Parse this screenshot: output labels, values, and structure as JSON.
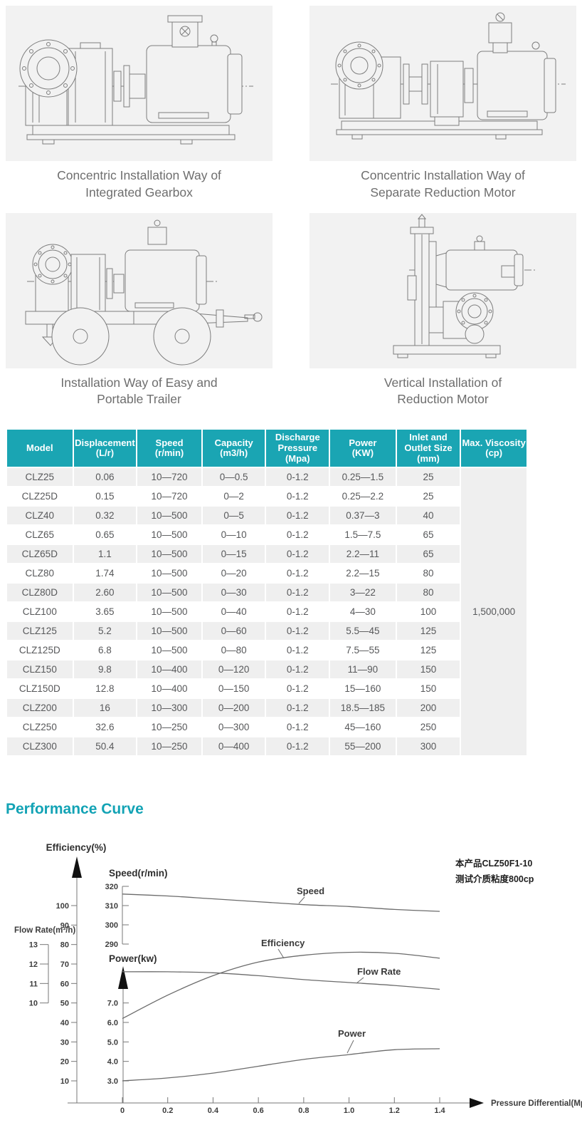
{
  "installations": {
    "items": [
      {
        "caption_line1": "Concentric Installation Way of",
        "caption_line2": "Integrated Gearbox"
      },
      {
        "caption_line1": "Concentric Installation Way of",
        "caption_line2": "Separate Reduction Motor"
      },
      {
        "caption_line1": "Installation Way of Easy and",
        "caption_line2": "Portable Trailer"
      },
      {
        "caption_line1": "Vertical Installation of",
        "caption_line2": "Reduction Motor"
      }
    ]
  },
  "spec_table": {
    "header_bg": "#1aa5b3",
    "stripe_bg": "#efefef",
    "columns": [
      {
        "lines": [
          "Model"
        ]
      },
      {
        "lines": [
          "Displacement",
          "(L/r)"
        ]
      },
      {
        "lines": [
          "Speed",
          "(r/min)"
        ]
      },
      {
        "lines": [
          "Capacity",
          "(m3/h)"
        ]
      },
      {
        "lines": [
          "Discharge",
          "Pressure",
          "(Mpa)"
        ]
      },
      {
        "lines": [
          "Power",
          "(KW)"
        ]
      },
      {
        "lines": [
          "Inlet and",
          "Outlet Size",
          "(mm)"
        ]
      },
      {
        "lines": [
          "Max. Viscosity",
          "(cp)"
        ]
      }
    ],
    "max_viscosity": "1,500,000",
    "rows": [
      {
        "model": "CLZ25",
        "displacement": "0.06",
        "speed": "10—720",
        "capacity": "0—0.5",
        "discharge_pressure": "0-1.2",
        "power": "0.25—1.5",
        "inlet_outlet_size": "25"
      },
      {
        "model": "CLZ25D",
        "displacement": "0.15",
        "speed": "10—720",
        "capacity": "0—2",
        "discharge_pressure": "0-1.2",
        "power": "0.25—2.2",
        "inlet_outlet_size": "25"
      },
      {
        "model": "CLZ40",
        "displacement": "0.32",
        "speed": "10—500",
        "capacity": "0—5",
        "discharge_pressure": "0-1.2",
        "power": "0.37—3",
        "inlet_outlet_size": "40"
      },
      {
        "model": "CLZ65",
        "displacement": "0.65",
        "speed": "10—500",
        "capacity": "0—10",
        "discharge_pressure": "0-1.2",
        "power": "1.5—7.5",
        "inlet_outlet_size": "65"
      },
      {
        "model": "CLZ65D",
        "displacement": "1.1",
        "speed": "10—500",
        "capacity": "0—15",
        "discharge_pressure": "0-1.2",
        "power": "2.2—11",
        "inlet_outlet_size": "65"
      },
      {
        "model": "CLZ80",
        "displacement": "1.74",
        "speed": "10—500",
        "capacity": "0—20",
        "discharge_pressure": "0-1.2",
        "power": "2.2—15",
        "inlet_outlet_size": "80"
      },
      {
        "model": "CLZ80D",
        "displacement": "2.60",
        "speed": "10—500",
        "capacity": "0—30",
        "discharge_pressure": "0-1.2",
        "power": "3—22",
        "inlet_outlet_size": "80"
      },
      {
        "model": "CLZ100",
        "displacement": "3.65",
        "speed": "10—500",
        "capacity": "0—40",
        "discharge_pressure": "0-1.2",
        "power": "4—30",
        "inlet_outlet_size": "100"
      },
      {
        "model": "CLZ125",
        "displacement": "5.2",
        "speed": "10—500",
        "capacity": "0—60",
        "discharge_pressure": "0-1.2",
        "power": "5.5—45",
        "inlet_outlet_size": "125"
      },
      {
        "model": "CLZ125D",
        "displacement": "6.8",
        "speed": "10—500",
        "capacity": "0—80",
        "discharge_pressure": "0-1.2",
        "power": "7.5—55",
        "inlet_outlet_size": "125"
      },
      {
        "model": "CLZ150",
        "displacement": "9.8",
        "speed": "10—400",
        "capacity": "0—120",
        "discharge_pressure": "0-1.2",
        "power": "11—90",
        "inlet_outlet_size": "150"
      },
      {
        "model": "CLZ150D",
        "displacement": "12.8",
        "speed": "10—400",
        "capacity": "0—150",
        "discharge_pressure": "0-1.2",
        "power": "15—160",
        "inlet_outlet_size": "150"
      },
      {
        "model": "CLZ200",
        "displacement": "16",
        "speed": "10—300",
        "capacity": "0—200",
        "discharge_pressure": "0-1.2",
        "power": "18.5—185",
        "inlet_outlet_size": "200"
      },
      {
        "model": "CLZ250",
        "displacement": "32.6",
        "speed": "10—250",
        "capacity": "0—300",
        "discharge_pressure": "0-1.2",
        "power": "45—160",
        "inlet_outlet_size": "250"
      },
      {
        "model": "CLZ300",
        "displacement": "50.4",
        "speed": "10—250",
        "capacity": "0—400",
        "discharge_pressure": "0-1.2",
        "power": "55—200",
        "inlet_outlet_size": "300"
      }
    ]
  },
  "performance": {
    "heading": "Performance Curve"
  },
  "chart_data": {
    "type": "line",
    "title": "Performance Curve",
    "annotations": [
      "本产品CLZ50F1-10",
      "测试介质粘度800cp"
    ],
    "x_axis": {
      "label": "Pressure Differential(Mpa)",
      "range": [
        0,
        1.4
      ],
      "ticks": [
        "0",
        "0.2",
        "0.4",
        "0.6",
        "0.8",
        "1.0",
        "1.2",
        "1.4"
      ]
    },
    "efficiency_axis": {
      "label": "Efficiency(%)",
      "range": [
        10,
        100
      ],
      "ticks": [
        "10",
        "20",
        "30",
        "40",
        "50",
        "60",
        "70",
        "80",
        "90",
        "100"
      ]
    },
    "flow_axis": {
      "label": "Flow Rate(m³/h)",
      "range": [
        10,
        13
      ],
      "ticks": [
        "10",
        "11",
        "12",
        "13"
      ]
    },
    "speed_axis": {
      "label": "Speed(r/min)",
      "range": [
        290,
        320
      ],
      "ticks": [
        "290",
        "300",
        "310",
        "320"
      ]
    },
    "power_axis": {
      "label": "Power(kw)",
      "range": [
        3.0,
        7.0
      ],
      "ticks": [
        "3.0",
        "4.0",
        "5.0",
        "6.0",
        "7.0"
      ]
    },
    "x": [
      0,
      0.2,
      0.4,
      0.6,
      0.8,
      1.0,
      1.2,
      1.4
    ],
    "series": [
      {
        "name": "Speed",
        "unit": "r/min",
        "axis": "speed",
        "values": [
          316,
          315,
          313.5,
          312,
          310.5,
          309.5,
          308,
          307
        ]
      },
      {
        "name": "Efficiency",
        "unit": "%",
        "axis": "efficiency",
        "values": [
          42,
          54,
          64,
          71,
          74.5,
          76,
          75.5,
          73
        ]
      },
      {
        "name": "Flow Rate",
        "unit": "m3/h",
        "axis": "flow",
        "values": [
          11.6,
          11.6,
          11.55,
          11.4,
          11.2,
          11.05,
          10.9,
          10.7
        ]
      },
      {
        "name": "Power",
        "unit": "kw",
        "axis": "power",
        "values": [
          3.0,
          3.15,
          3.4,
          3.75,
          4.1,
          4.35,
          4.6,
          4.65
        ]
      }
    ],
    "legend_position": "curve-labels",
    "grid": false
  }
}
